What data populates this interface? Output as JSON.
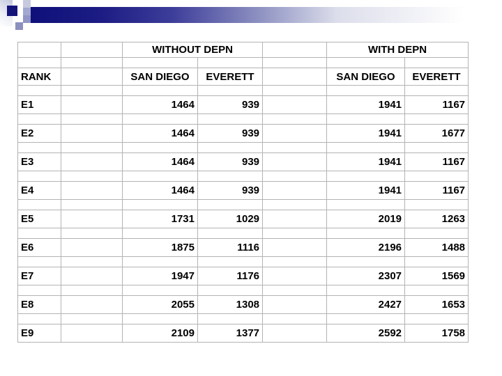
{
  "table": {
    "group_headers": [
      "WITHOUT DEPN",
      "WITH DEPN"
    ],
    "col_headers": [
      "RANK",
      "SAN DIEGO",
      "EVERETT",
      "SAN DIEGO",
      "EVERETT"
    ],
    "rows": [
      {
        "rank": "E1",
        "values": [
          "1464",
          "939",
          "1941",
          "1167"
        ]
      },
      {
        "rank": "E2",
        "values": [
          "1464",
          "939",
          "1941",
          "1677"
        ]
      },
      {
        "rank": "E3",
        "values": [
          "1464",
          "939",
          "1941",
          "1167"
        ]
      },
      {
        "rank": "E4",
        "values": [
          "1464",
          "939",
          "1941",
          "1167"
        ]
      },
      {
        "rank": "E5",
        "values": [
          "1731",
          "1029",
          "2019",
          "1263"
        ]
      },
      {
        "rank": "E6",
        "values": [
          "1875",
          "1116",
          "2196",
          "1488"
        ]
      },
      {
        "rank": "E7",
        "values": [
          "1947",
          "1176",
          "2307",
          "1569"
        ]
      },
      {
        "rank": "E8",
        "values": [
          "2055",
          "1308",
          "2427",
          "1653"
        ]
      },
      {
        "rank": "E9",
        "values": [
          "2109",
          "1377",
          "2592",
          "1758"
        ]
      }
    ]
  },
  "colors": {
    "bar_gradient_start": "#10107a",
    "bar_gradient_end": "#ffffff",
    "square_dark": "#14147b",
    "square_light": "#c7cade",
    "square_medium": "#9096c5",
    "square_periwinkle": "#8b90bf",
    "grid_line": "#b3b3b3",
    "text": "#000000",
    "background": "#ffffff"
  }
}
